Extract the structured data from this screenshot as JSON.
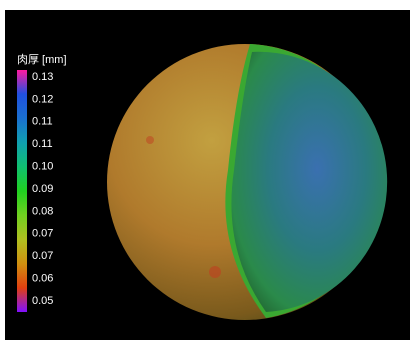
{
  "legend": {
    "title": "肉厚 [mm]",
    "labels": [
      "0.13",
      "0.12",
      "0.11",
      "0.11",
      "0.10",
      "0.09",
      "0.08",
      "0.07",
      "0.07",
      "0.06",
      "0.05"
    ],
    "colors": [
      "#ff1aa0",
      "#2050e0",
      "#1a70d0",
      "#10a0b0",
      "#10c070",
      "#20d020",
      "#70d020",
      "#b0c020",
      "#d09010",
      "#e04010",
      "#8010ff"
    ]
  }
}
